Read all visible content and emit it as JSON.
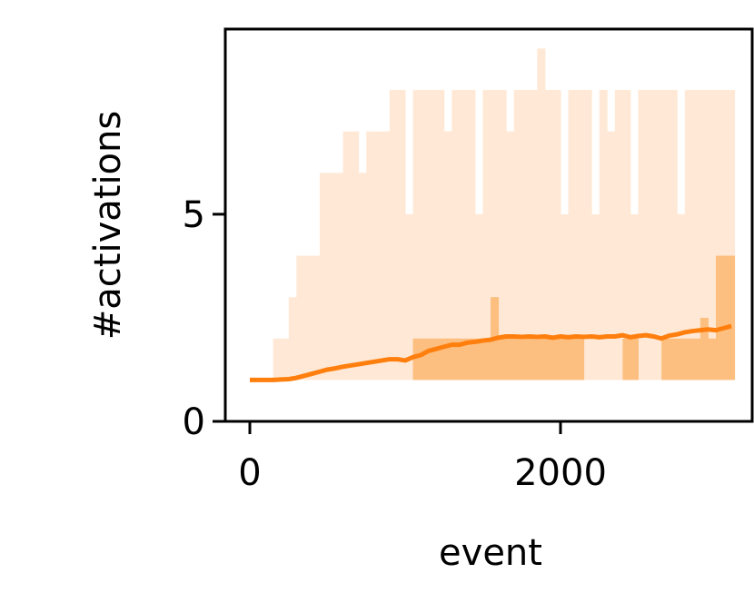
{
  "chart_data": {
    "type": "line",
    "x_label": "event",
    "y_label": "#activations",
    "x": [
      0,
      50,
      100,
      150,
      200,
      250,
      300,
      350,
      400,
      450,
      500,
      550,
      600,
      650,
      700,
      750,
      800,
      850,
      900,
      950,
      1000,
      1050,
      1100,
      1150,
      1200,
      1250,
      1300,
      1350,
      1400,
      1450,
      1500,
      1550,
      1600,
      1650,
      1700,
      1750,
      1800,
      1850,
      1900,
      1950,
      2000,
      2050,
      2100,
      2150,
      2200,
      2250,
      2300,
      2350,
      2400,
      2450,
      2500,
      2550,
      2600,
      2650,
      2700,
      2750,
      2800,
      2850,
      2900,
      2950,
      3000,
      3050,
      3100
    ],
    "series": [
      {
        "color": "#ffe9d6",
        "style": "band",
        "values": [
          1,
          1,
          1,
          2,
          2,
          3,
          4,
          4,
          4,
          6,
          6,
          6,
          7,
          7,
          6,
          7,
          7,
          7,
          8,
          8,
          5,
          8,
          8,
          8,
          8,
          7,
          8,
          8,
          8,
          5,
          8,
          8,
          8,
          7,
          8,
          8,
          8,
          9,
          8,
          8,
          5,
          8,
          8,
          8,
          5,
          8,
          7,
          8,
          8,
          5,
          8,
          8,
          8,
          8,
          8,
          5,
          8,
          8,
          8,
          8,
          8,
          8,
          8
        ],
        "lower": [
          1,
          1,
          1,
          1,
          1,
          1,
          1,
          1,
          1,
          1,
          1,
          1,
          1,
          1,
          1,
          1,
          1,
          1,
          1,
          1,
          1,
          1,
          1,
          1,
          1,
          1,
          1,
          1,
          1,
          1,
          1,
          1,
          1,
          1,
          1,
          1,
          1,
          1,
          1,
          1,
          1,
          1,
          1,
          1,
          1,
          1,
          1,
          1,
          1,
          1,
          1,
          1,
          1,
          1,
          1,
          1,
          1,
          1,
          1,
          1,
          1,
          1,
          1
        ]
      },
      {
        "color": "#fdbf80",
        "style": "band",
        "values": [
          1,
          1,
          1,
          1,
          1,
          1,
          1,
          1,
          1,
          1,
          1,
          1,
          1,
          1,
          1,
          1,
          1,
          1,
          1,
          1,
          1,
          2,
          2,
          2,
          2,
          2,
          2,
          2,
          2,
          2,
          2,
          3,
          2,
          2,
          2,
          2,
          2,
          2,
          2,
          2,
          2,
          2,
          2,
          1,
          1,
          1,
          1,
          1,
          2,
          2,
          1,
          1,
          1,
          2,
          2,
          2,
          2,
          2,
          2.5,
          2,
          4,
          4,
          4
        ],
        "lower": [
          1,
          1,
          1,
          1,
          1,
          1,
          1,
          1,
          1,
          1,
          1,
          1,
          1,
          1,
          1,
          1,
          1,
          1,
          1,
          1,
          1,
          1,
          1,
          1,
          1,
          1,
          1,
          1,
          1,
          1,
          1,
          1,
          1,
          1,
          1,
          1,
          1,
          1,
          1,
          1,
          1,
          1,
          1,
          1,
          1,
          1,
          1,
          1,
          1,
          1,
          1,
          1,
          1,
          1,
          1,
          1,
          1,
          1,
          1,
          1,
          1,
          1,
          1
        ]
      },
      {
        "color": "#ff7f0e",
        "style": "line",
        "values": [
          1,
          1,
          1,
          1,
          1.01,
          1.02,
          1.05,
          1.1,
          1.15,
          1.2,
          1.25,
          1.28,
          1.32,
          1.35,
          1.38,
          1.41,
          1.44,
          1.47,
          1.5,
          1.5,
          1.47,
          1.55,
          1.6,
          1.7,
          1.75,
          1.8,
          1.85,
          1.85,
          1.9,
          1.92,
          1.95,
          1.97,
          2.02,
          2.05,
          2.05,
          2.04,
          2.05,
          2.04,
          2.05,
          2.02,
          2.05,
          2.03,
          2.05,
          2.04,
          2.05,
          2.03,
          2.05,
          2.05,
          2.08,
          2.03,
          2.06,
          2.08,
          2.05,
          2.0,
          2.07,
          2.1,
          2.15,
          2.18,
          2.2,
          2.22,
          2.2,
          2.25,
          2.3
        ]
      }
    ],
    "xlim": [
      -158,
      3234
    ],
    "ylim": [
      0,
      9.47
    ],
    "xticks": [
      0,
      2000
    ],
    "yticks": [
      0,
      5
    ]
  }
}
